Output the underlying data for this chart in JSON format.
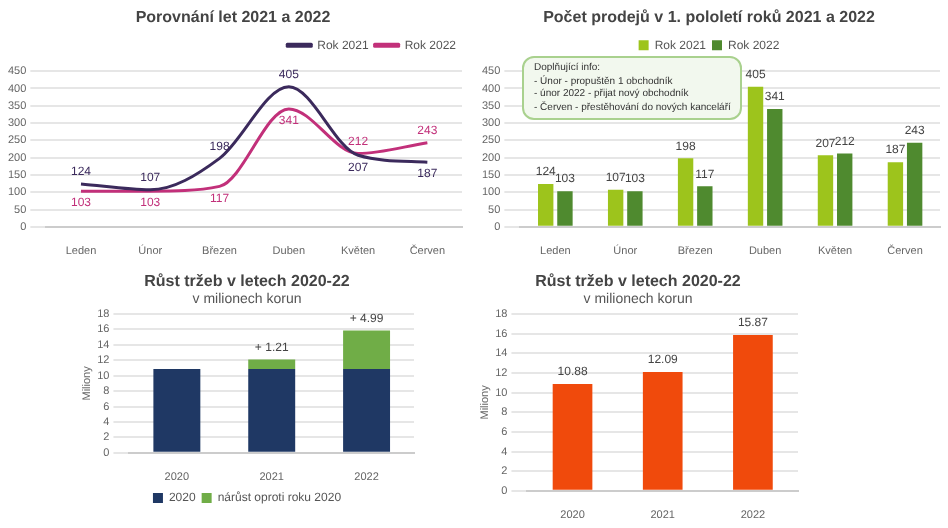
{
  "chart_data": [
    {
      "type": "line",
      "title": "Porovnání let 2021 a 2022",
      "categories": [
        "Leden",
        "Únor",
        "Březen",
        "Duben",
        "Květen",
        "Červen"
      ],
      "series": [
        {
          "name": "Rok 2021",
          "color": "#3b2a5c",
          "values": [
            124,
            107,
            198,
            405,
            207,
            187
          ]
        },
        {
          "name": "Rok 2022",
          "color": "#c2307a",
          "values": [
            103,
            103,
            117,
            341,
            212,
            243
          ]
        }
      ],
      "ylim": [
        0,
        450
      ],
      "yticks": [
        0,
        50,
        100,
        150,
        200,
        250,
        300,
        350,
        400,
        450
      ],
      "grid": "y",
      "legend": "top right",
      "data_labels": true
    },
    {
      "type": "bar",
      "title": "Počet prodejů v 1. pololetí roků 2021 a 2022",
      "categories": [
        "Leden",
        "Únor",
        "Březen",
        "Duben",
        "Květen",
        "Červen"
      ],
      "series": [
        {
          "name": "Rok 2021",
          "color": "#9dc41c",
          "values": [
            124,
            107,
            198,
            405,
            207,
            187
          ]
        },
        {
          "name": "Rok 2022",
          "color": "#4f8a2f",
          "values": [
            103,
            103,
            117,
            341,
            212,
            243
          ]
        }
      ],
      "ylim": [
        0,
        450
      ],
      "yticks": [
        0,
        50,
        100,
        150,
        200,
        250,
        300,
        350,
        400,
        450
      ],
      "grid": "y",
      "legend": "top",
      "data_labels": true,
      "annotations": [
        "Doplňující info:",
        "- Únor - propuštěn 1 obchodník",
        "- únor 2022 - přijat nový obchodník",
        "- Červen - přestěhování do nových kanceláří"
      ]
    },
    {
      "type": "bar",
      "title": "Růst tržeb v letech 2020-22",
      "subtitle": "v milionech korun",
      "ylabel": "Miliony",
      "categories": [
        "2020",
        "2021",
        "2022"
      ],
      "stacked": true,
      "series": [
        {
          "name": "2020",
          "color": "#1f3864",
          "values": [
            10.88,
            10.88,
            10.88
          ]
        },
        {
          "name": "nárůst oproti roku 2020",
          "color": "#70ad47",
          "values": [
            0,
            1.21,
            4.99
          ],
          "value_labels": [
            null,
            "+ 1.21",
            "+ 4.99"
          ]
        }
      ],
      "ylim": [
        0,
        18
      ],
      "yticks": [
        0,
        2,
        4,
        6,
        8,
        10,
        12,
        14,
        16,
        18
      ],
      "grid": "y",
      "legend": "bottom"
    },
    {
      "type": "bar",
      "title": "Růst tržeb v letech 2020-22",
      "subtitle": "v milionech korun",
      "ylabel": "Miliony",
      "categories": [
        "2020",
        "2021",
        "2022"
      ],
      "values": [
        10.88,
        12.09,
        15.87
      ],
      "color": "#f04a0c",
      "ylim": [
        0,
        18
      ],
      "yticks": [
        0,
        2,
        4,
        6,
        8,
        10,
        12,
        14,
        16,
        18
      ],
      "grid": "y",
      "data_labels": true
    }
  ]
}
